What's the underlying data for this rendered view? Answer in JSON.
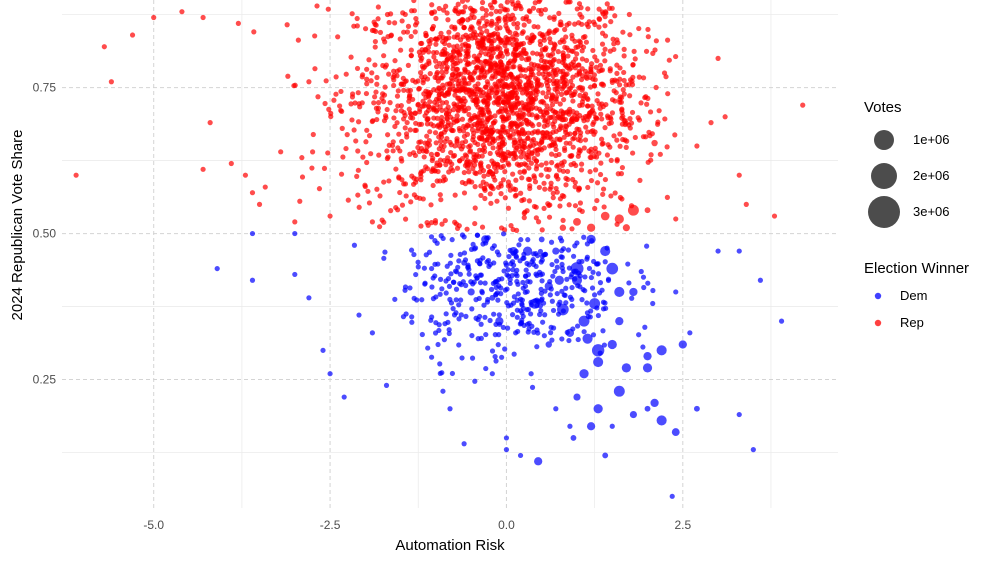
{
  "chart_data": {
    "type": "scatter",
    "xlabel": "Automation Risk",
    "ylabel": "2024 Republican Vote Share",
    "xlim": [
      -6.3,
      4.7
    ],
    "ylim": [
      0.03,
      0.9
    ],
    "x_ticks": [
      -5.0,
      -2.5,
      0.0,
      2.5
    ],
    "x_tick_labels": [
      "-5.0",
      "-2.5",
      "0.0",
      "2.5"
    ],
    "y_ticks": [
      0.25,
      0.5,
      0.75
    ],
    "y_tick_labels": [
      "0.25",
      "0.50",
      "0.75"
    ],
    "grid": true,
    "point_alpha": 0.7,
    "size_legend": {
      "title": "Votes",
      "entries": [
        {
          "label": "1e+06",
          "value": 1000000
        },
        {
          "label": "2e+06",
          "value": 2000000
        },
        {
          "label": "3e+06",
          "value": 3000000
        }
      ]
    },
    "color_legend": {
      "title": "Election Winner",
      "entries": [
        {
          "label": "Dem",
          "color": "#0000ff"
        },
        {
          "label": "Rep",
          "color": "#ff0000"
        }
      ]
    },
    "legend_position": "right",
    "series": [
      {
        "name": "Rep",
        "color": "#ff0000",
        "points": [
          [
            -6.1,
            0.6,
            20000
          ],
          [
            -5.7,
            0.82,
            20000
          ],
          [
            -5.6,
            0.76,
            20000
          ],
          [
            -5.3,
            0.84,
            20000
          ],
          [
            -5.0,
            0.87,
            20000
          ],
          [
            -4.6,
            0.88,
            20000
          ],
          [
            -4.3,
            0.87,
            20000
          ],
          [
            -4.2,
            0.69,
            20000
          ],
          [
            -4.3,
            0.61,
            20000
          ],
          [
            -3.9,
            0.62,
            20000
          ],
          [
            -3.8,
            0.86,
            20000
          ],
          [
            -3.7,
            0.6,
            20000
          ],
          [
            -3.6,
            0.57,
            20000
          ],
          [
            -3.5,
            0.55,
            20000
          ],
          [
            -3.0,
            0.52,
            20000
          ],
          [
            -3.2,
            0.64,
            20000
          ],
          [
            -2.9,
            0.63,
            20000
          ],
          [
            -2.8,
            0.76,
            20000
          ],
          [
            -2.5,
            0.53,
            20000
          ],
          [
            -1.9,
            0.52,
            20000
          ],
          [
            3.0,
            0.8,
            20000
          ],
          [
            3.1,
            0.7,
            20000
          ],
          [
            3.3,
            0.6,
            20000
          ],
          [
            3.4,
            0.55,
            20000
          ],
          [
            3.8,
            0.53,
            20000
          ],
          [
            4.2,
            0.72,
            20000
          ],
          [
            2.0,
            0.54,
            100000
          ],
          [
            2.4,
            0.525,
            20000
          ],
          [
            2.9,
            0.69,
            20000
          ],
          [
            2.7,
            0.65,
            20000
          ],
          [
            1.8,
            0.54,
            350000
          ],
          [
            1.6,
            0.525,
            250000
          ],
          [
            1.4,
            0.53,
            220000
          ],
          [
            1.2,
            0.51,
            200000
          ],
          [
            1.0,
            0.52,
            180000
          ],
          [
            1.7,
            0.51,
            150000
          ],
          [
            0.8,
            0.51,
            120000
          ],
          [
            2.1,
            0.655,
            120000
          ]
        ],
        "cloud": {
          "x_range": [
            -3.6,
            2.4
          ],
          "y_range": [
            0.5,
            0.9
          ],
          "x_center": -0.1,
          "y_center": 0.73,
          "count": 2200,
          "typical_votes": 20000
        }
      },
      {
        "name": "Dem",
        "color": "#0000ff",
        "points": [
          [
            -4.1,
            0.44,
            20000
          ],
          [
            -3.6,
            0.42,
            20000
          ],
          [
            -3.6,
            0.5,
            20000
          ],
          [
            -3.0,
            0.5,
            20000
          ],
          [
            -3.0,
            0.43,
            20000
          ],
          [
            -2.8,
            0.39,
            20000
          ],
          [
            -2.6,
            0.3,
            20000
          ],
          [
            -2.5,
            0.26,
            20000
          ],
          [
            -2.3,
            0.22,
            20000
          ],
          [
            -1.9,
            0.33,
            80000
          ],
          [
            -1.7,
            0.24,
            20000
          ],
          [
            -0.9,
            0.23,
            30000
          ],
          [
            -0.8,
            0.2,
            20000
          ],
          [
            -0.2,
            0.26,
            20000
          ],
          [
            -0.6,
            0.14,
            20000
          ],
          [
            0.0,
            0.15,
            50000
          ],
          [
            0.0,
            0.13,
            20000
          ],
          [
            0.2,
            0.12,
            20000
          ],
          [
            0.45,
            0.11,
            200000
          ],
          [
            0.7,
            0.2,
            80000
          ],
          [
            0.9,
            0.17,
            80000
          ],
          [
            1.0,
            0.22,
            150000
          ],
          [
            1.3,
            0.2,
            250000
          ],
          [
            1.2,
            0.17,
            200000
          ],
          [
            0.95,
            0.15,
            100000
          ],
          [
            1.4,
            0.12,
            100000
          ],
          [
            1.6,
            0.23,
            350000
          ],
          [
            1.5,
            0.17,
            80000
          ],
          [
            1.8,
            0.19,
            150000
          ],
          [
            2.0,
            0.2,
            100000
          ],
          [
            2.1,
            0.21,
            200000
          ],
          [
            2.2,
            0.18,
            300000
          ],
          [
            2.4,
            0.16,
            180000
          ],
          [
            2.7,
            0.2,
            100000
          ],
          [
            2.0,
            0.27,
            250000
          ],
          [
            2.0,
            0.29,
            200000
          ],
          [
            2.2,
            0.3,
            300000
          ],
          [
            2.5,
            0.31,
            200000
          ],
          [
            2.35,
            0.05,
            20000
          ],
          [
            3.3,
            0.19,
            20000
          ],
          [
            3.5,
            0.13,
            20000
          ],
          [
            3.6,
            0.42,
            20000
          ],
          [
            3.9,
            0.35,
            20000
          ],
          [
            3.0,
            0.47,
            20000
          ],
          [
            3.3,
            0.47,
            20000
          ],
          [
            2.4,
            0.4,
            20000
          ],
          [
            2.6,
            0.33,
            20000
          ],
          [
            -0.6,
            0.45,
            100000
          ],
          [
            -0.5,
            0.4,
            150000
          ],
          [
            -0.1,
            0.35,
            200000
          ],
          [
            -0.4,
            0.32,
            80000
          ],
          [
            0.4,
            0.38,
            300000
          ],
          [
            0.6,
            0.31,
            120000
          ],
          [
            0.3,
            0.47,
            250000
          ],
          [
            -0.3,
            0.49,
            200000
          ],
          [
            0.5,
            0.49,
            100000
          ],
          [
            0.7,
            0.47,
            150000
          ],
          [
            0.1,
            0.47,
            200000
          ],
          [
            -0.2,
            0.39,
            100000
          ],
          [
            0.35,
            0.26,
            80000
          ],
          [
            0.8,
            0.37,
            400000
          ],
          [
            1.0,
            0.44,
            500000
          ],
          [
            1.2,
            0.49,
            250000
          ],
          [
            1.5,
            0.44,
            400000
          ],
          [
            1.1,
            0.35,
            350000
          ],
          [
            1.3,
            0.3,
            450000
          ],
          [
            1.1,
            0.26,
            250000
          ],
          [
            1.6,
            0.4,
            300000
          ],
          [
            1.7,
            0.27,
            250000
          ],
          [
            1.8,
            0.4,
            200000
          ],
          [
            1.3,
            0.28,
            300000
          ],
          [
            1.6,
            0.35,
            200000
          ],
          [
            1.0,
            0.42,
            300000
          ],
          [
            0.9,
            0.33,
            200000
          ],
          [
            1.4,
            0.47,
            300000
          ],
          [
            0.75,
            0.42,
            250000
          ],
          [
            1.25,
            0.38,
            350000
          ],
          [
            1.5,
            0.31,
            250000
          ],
          [
            0.6,
            0.41,
            200000
          ],
          [
            1.15,
            0.32,
            300000
          ]
        ],
        "cloud": {
          "x_range": [
            -2.3,
            2.3
          ],
          "y_range": [
            0.23,
            0.5
          ],
          "x_center": 0.1,
          "y_center": 0.42,
          "count": 430,
          "typical_votes": 20000
        }
      }
    ]
  }
}
